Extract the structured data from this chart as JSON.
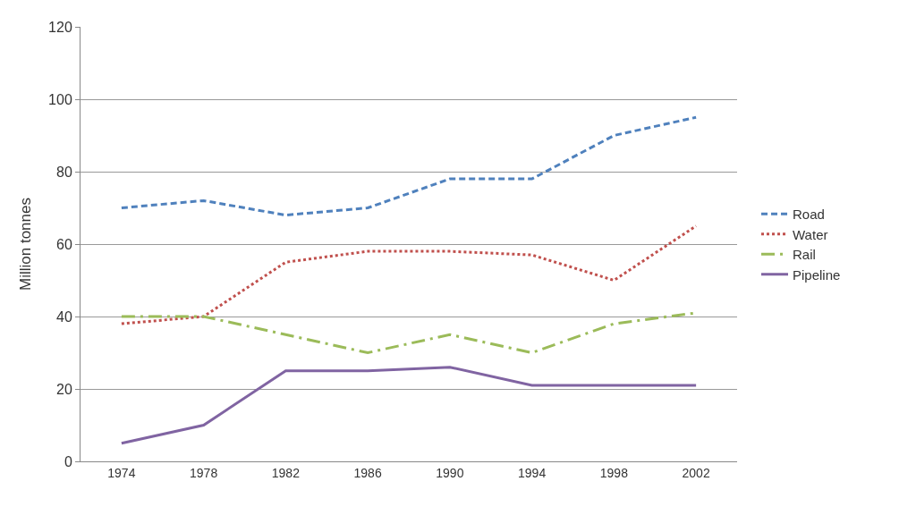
{
  "chart_data": {
    "type": "line",
    "ylabel": "Million tonnes",
    "categories": [
      "1974",
      "1978",
      "1982",
      "1986",
      "1990",
      "1994",
      "1998",
      "2002"
    ],
    "series": [
      {
        "name": "Road",
        "color": "#4f81bd",
        "line_style": "dashed",
        "values": [
          70,
          72,
          68,
          70,
          78,
          78,
          90,
          95
        ]
      },
      {
        "name": "Water",
        "color": "#c0504d",
        "line_style": "dotted",
        "values": [
          38,
          40,
          55,
          58,
          58,
          57,
          50,
          65
        ]
      },
      {
        "name": "Rail",
        "color": "#9bbb59",
        "line_style": "dashdot",
        "values": [
          40,
          40,
          35,
          30,
          35,
          30,
          38,
          41
        ]
      },
      {
        "name": "Pipeline",
        "color": "#8064a2",
        "line_style": "solid",
        "values": [
          5,
          10,
          25,
          25,
          26,
          21,
          21,
          21
        ]
      }
    ],
    "ylim": [
      0,
      120
    ],
    "yticks": [
      0,
      20,
      40,
      60,
      80,
      100,
      120
    ],
    "grid": "y",
    "legend": "right",
    "marker": "none"
  }
}
